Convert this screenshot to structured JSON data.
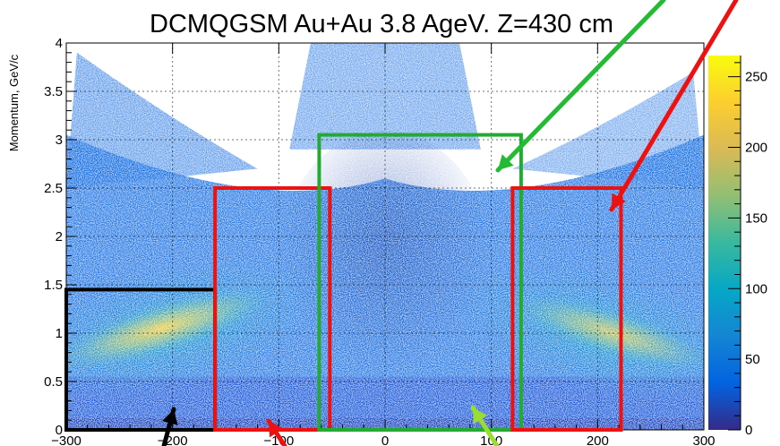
{
  "chart_data": {
    "type": "heatmap",
    "title": "DCMQGSM Au+Au 3.8 AgeV. Z=430 cm",
    "xlabel": "",
    "ylabel": "Momentum, GeV/c",
    "xlim": [
      -300,
      300
    ],
    "ylim": [
      0,
      4
    ],
    "grid": true,
    "x_ticks": [
      -300,
      -200,
      -100,
      0,
      100,
      200,
      300
    ],
    "x_tick_labels": [
      "−300",
      "−200",
      "−100",
      "0",
      "100",
      "200",
      "300"
    ],
    "y_ticks": [
      0,
      0.5,
      1,
      1.5,
      2,
      2.5,
      3,
      3.5,
      4
    ],
    "y_tick_labels": [
      "0",
      "0.5",
      "1",
      "1.5",
      "2",
      "2.5",
      "3",
      "3.5",
      "4"
    ],
    "colorbar": {
      "range": [
        0,
        265
      ],
      "ticks": [
        0,
        50,
        100,
        150,
        200,
        250
      ],
      "tick_labels": [
        "0",
        "50",
        "100",
        "150",
        "200",
        "250"
      ],
      "colors": [
        "#352a87",
        "#0363e1",
        "#1485d4",
        "#06a7c6",
        "#38b99e",
        "#92bf73",
        "#d9ba56",
        "#fcce2e",
        "#f9fb0e"
      ]
    },
    "regions": [
      {
        "color": "#000000",
        "x": [
          -300,
          -160
        ],
        "y": [
          0,
          1.45
        ]
      },
      {
        "color": "#ee1111",
        "x": [
          -160,
          -52
        ],
        "y": [
          0,
          2.5
        ]
      },
      {
        "color": "#22aa33",
        "x": [
          -62,
          128
        ],
        "y": [
          0,
          3.05
        ]
      },
      {
        "color": "#ee1111",
        "x": [
          120,
          222
        ],
        "y": [
          0,
          2.5
        ]
      }
    ],
    "arrows": [
      {
        "color": "#22bb33"
      },
      {
        "color": "#ee1111"
      },
      {
        "color": "#000000"
      },
      {
        "color": "#ee1111"
      },
      {
        "color": "#99dd33"
      }
    ]
  }
}
